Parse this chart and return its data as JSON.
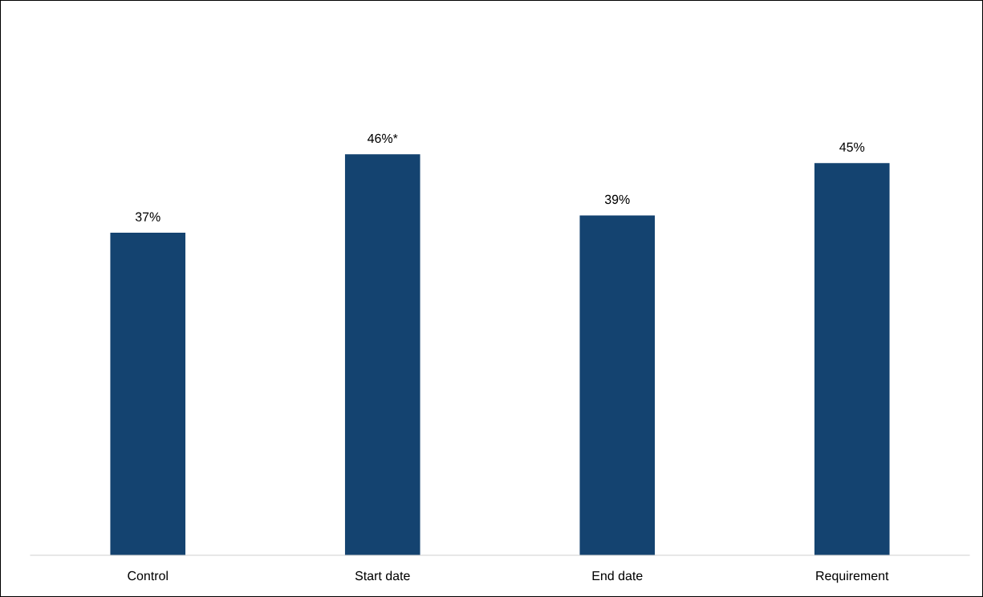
{
  "chart_data": {
    "type": "bar",
    "categories": [
      "Control",
      "Start date",
      "End date",
      "Requirement"
    ],
    "values": [
      37,
      46,
      39,
      45
    ],
    "value_labels": [
      "37%",
      "46%*",
      "39%",
      "45%"
    ],
    "color": "#144370",
    "grid": false,
    "legend": false
  }
}
